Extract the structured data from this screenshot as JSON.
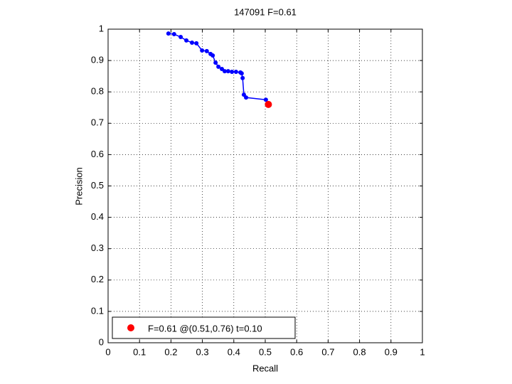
{
  "chart_data": {
    "type": "line",
    "title": "147091 F=0.61",
    "xlabel": "Recall",
    "ylabel": "Precision",
    "xlim": [
      0,
      1
    ],
    "ylim": [
      0,
      1
    ],
    "xticks": [
      0,
      0.1,
      0.2,
      0.3,
      0.4,
      0.5,
      0.6,
      0.7,
      0.8,
      0.9,
      1
    ],
    "yticks": [
      0,
      0.1,
      0.2,
      0.3,
      0.4,
      0.5,
      0.6,
      0.7,
      0.8,
      0.9,
      1
    ],
    "grid": true,
    "legend_location": "southwest",
    "series": [
      {
        "color": "#0000ff",
        "x": [
          0.192,
          0.21,
          0.231,
          0.249,
          0.267,
          0.281,
          0.299,
          0.314,
          0.326,
          0.333,
          0.342,
          0.351,
          0.362,
          0.371,
          0.382,
          0.394,
          0.407,
          0.421,
          0.425,
          0.428,
          0.432,
          0.439,
          0.502
        ],
        "values": [
          0.986,
          0.984,
          0.975,
          0.964,
          0.957,
          0.955,
          0.932,
          0.93,
          0.921,
          0.916,
          0.893,
          0.88,
          0.873,
          0.866,
          0.866,
          0.864,
          0.864,
          0.862,
          0.859,
          0.844,
          0.791,
          0.782,
          0.775
        ]
      },
      {
        "name": "F=0.61 @(0.51,0.76) t=0.10",
        "color": "#ff0000",
        "x": [
          0.51
        ],
        "values": [
          0.76
        ]
      }
    ]
  }
}
